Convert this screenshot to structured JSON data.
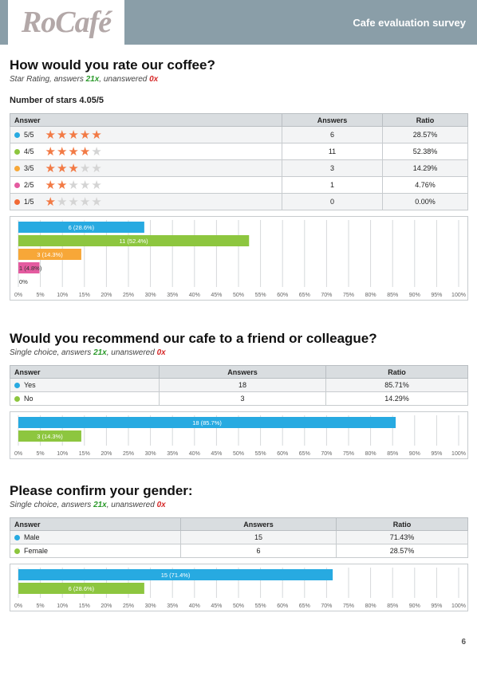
{
  "header": {
    "logo_text": "RoCafé",
    "title": "Cafe evaluation survey"
  },
  "page_number": "6",
  "questions": [
    {
      "title": "How would you rate our coffee?",
      "type_label": "Star Rating, answers ",
      "answers": "21x",
      "unanswered_label": ", unanswered ",
      "unanswered": "0x",
      "stars_summary": "Number of stars 4.05/5",
      "table_headers": [
        "Answer",
        "Answers",
        "Ratio"
      ],
      "rows": [
        {
          "label": "5/5",
          "stars": 5,
          "answers": "6",
          "ratio": "28.57%",
          "color": "#27aae1"
        },
        {
          "label": "4/5",
          "stars": 4,
          "answers": "11",
          "ratio": "52.38%",
          "color": "#8dc63f"
        },
        {
          "label": "3/5",
          "stars": 3,
          "answers": "3",
          "ratio": "14.29%",
          "color": "#f7a738"
        },
        {
          "label": "2/5",
          "stars": 2,
          "answers": "1",
          "ratio": "4.76%",
          "color": "#e45ba0"
        },
        {
          "label": "1/5",
          "stars": 1,
          "answers": "0",
          "ratio": "0.00%",
          "color": "#f16a36"
        }
      ]
    },
    {
      "title": "Would you recommend our cafe to a friend or colleague?",
      "type_label": "Single choice, answers ",
      "answers": "21x",
      "unanswered_label": ", unanswered ",
      "unanswered": "0x",
      "table_headers": [
        "Answer",
        "Answers",
        "Ratio"
      ],
      "rows": [
        {
          "label": "Yes",
          "answers": "18",
          "ratio": "85.71%",
          "color": "#27aae1"
        },
        {
          "label": "No",
          "answers": "3",
          "ratio": "14.29%",
          "color": "#8dc63f"
        }
      ]
    },
    {
      "title": "Please confirm your gender:",
      "type_label": "Single choice, answers ",
      "answers": "21x",
      "unanswered_label": ", unanswered ",
      "unanswered": "0x",
      "table_headers": [
        "Answer",
        "Answers",
        "Ratio"
      ],
      "rows": [
        {
          "label": "Male",
          "answers": "15",
          "ratio": "71.43%",
          "color": "#27aae1"
        },
        {
          "label": "Female",
          "answers": "6",
          "ratio": "28.57%",
          "color": "#8dc63f"
        }
      ]
    }
  ],
  "chart_data": [
    {
      "type": "bar",
      "orientation": "horizontal",
      "categories": [
        "5/5",
        "4/5",
        "3/5",
        "2/5",
        "1/5"
      ],
      "values": [
        28.6,
        52.4,
        14.3,
        4.8,
        0
      ],
      "bar_labels": [
        "6 (28.6%)",
        "11 (52.4%)",
        "3 (14.3%)",
        "1 (4.8%)",
        "0%"
      ],
      "colors": [
        "#27aae1",
        "#8dc63f",
        "#f7a738",
        "#e45ba0",
        "#f16a36"
      ],
      "xlim": [
        0,
        100
      ],
      "ticks": [
        "0%",
        "5%",
        "10%",
        "15%",
        "20%",
        "25%",
        "30%",
        "35%",
        "40%",
        "45%",
        "50%",
        "55%",
        "60%",
        "65%",
        "70%",
        "75%",
        "80%",
        "85%",
        "90%",
        "95%",
        "100%"
      ],
      "grid": true
    },
    {
      "type": "bar",
      "orientation": "horizontal",
      "categories": [
        "Yes",
        "No"
      ],
      "values": [
        85.7,
        14.3
      ],
      "bar_labels": [
        "18 (85.7%)",
        "3 (14.3%)"
      ],
      "colors": [
        "#27aae1",
        "#8dc63f"
      ],
      "xlim": [
        0,
        100
      ],
      "ticks": [
        "0%",
        "5%",
        "10%",
        "15%",
        "20%",
        "25%",
        "30%",
        "35%",
        "40%",
        "45%",
        "50%",
        "55%",
        "60%",
        "65%",
        "70%",
        "75%",
        "80%",
        "85%",
        "90%",
        "95%",
        "100%"
      ],
      "grid": true
    },
    {
      "type": "bar",
      "orientation": "horizontal",
      "categories": [
        "Male",
        "Female"
      ],
      "values": [
        71.4,
        28.6
      ],
      "bar_labels": [
        "15 (71.4%)",
        "6 (28.6%)"
      ],
      "colors": [
        "#27aae1",
        "#8dc63f"
      ],
      "xlim": [
        0,
        100
      ],
      "ticks": [
        "0%",
        "5%",
        "10%",
        "15%",
        "20%",
        "25%",
        "30%",
        "35%",
        "40%",
        "45%",
        "50%",
        "55%",
        "60%",
        "65%",
        "70%",
        "75%",
        "80%",
        "85%",
        "90%",
        "95%",
        "100%"
      ],
      "grid": true
    }
  ]
}
